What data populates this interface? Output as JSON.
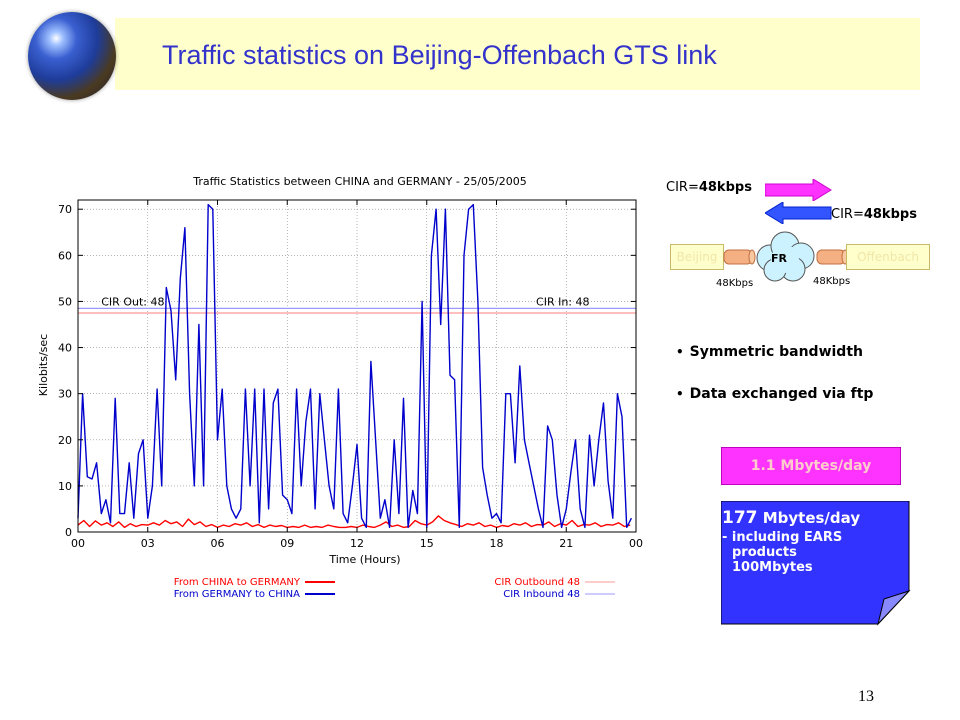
{
  "slide": {
    "title": "Traffic statistics on Beijing-Offenbach GTS link",
    "page_number": "13"
  },
  "chart_data": {
    "type": "line",
    "title": "Traffic Statistics between CHINA and GERMANY - 25/05/2005",
    "xlabel": "Time (Hours)",
    "ylabel": "Kilobits/sec",
    "xlim": [
      0,
      24
    ],
    "ylim": [
      0,
      72
    ],
    "xticks": [
      "00",
      "03",
      "06",
      "09",
      "12",
      "15",
      "18",
      "21",
      "00"
    ],
    "yticks": [
      0,
      10,
      20,
      30,
      40,
      50,
      60,
      70
    ],
    "grid": true,
    "legend_position": "bottom",
    "annotations": [
      {
        "text": "CIR Out: 48",
        "at_hour": 1,
        "at_value": 50
      },
      {
        "text": "CIR In: 48",
        "at_hour": 19.7,
        "at_value": 50
      }
    ],
    "series": [
      {
        "name": "From CHINA to GERMANY",
        "color": "#ff0000",
        "style": "solid",
        "x": [
          0,
          0.25,
          0.5,
          0.75,
          1,
          1.25,
          1.5,
          1.75,
          2,
          2.25,
          2.5,
          2.75,
          3,
          3.25,
          3.5,
          3.75,
          4,
          4.25,
          4.5,
          4.75,
          5,
          5.25,
          5.5,
          5.75,
          6,
          6.25,
          6.5,
          6.75,
          7,
          7.25,
          7.5,
          7.75,
          8,
          8.25,
          8.5,
          8.75,
          9,
          9.25,
          9.5,
          9.75,
          10,
          10.25,
          10.5,
          10.75,
          11,
          11.25,
          11.5,
          11.75,
          12,
          12.25,
          12.5,
          12.75,
          13,
          13.25,
          13.5,
          13.75,
          14,
          14.25,
          14.5,
          14.75,
          15,
          15.25,
          15.5,
          15.75,
          16,
          16.25,
          16.5,
          16.75,
          17,
          17.25,
          17.5,
          17.75,
          18,
          18.25,
          18.5,
          18.75,
          19,
          19.25,
          19.5,
          19.75,
          20,
          20.25,
          20.5,
          20.75,
          21,
          21.25,
          21.5,
          21.75,
          22,
          22.25,
          22.5,
          22.75,
          23,
          23.25,
          23.5,
          23.75
        ],
        "values": [
          1.5,
          2.5,
          1.2,
          2.4,
          1.5,
          2,
          1.2,
          2.2,
          1,
          1.8,
          1.2,
          1.6,
          1.5,
          2,
          1.5,
          2.5,
          1.8,
          2.2,
          1.2,
          2.8,
          1.6,
          2.2,
          1.2,
          1.6,
          1,
          1.5,
          1.2,
          1.8,
          1.5,
          2,
          1.2,
          1.6,
          1,
          1.5,
          1.2,
          1.4,
          1,
          1.2,
          1,
          1.5,
          1,
          1.2,
          1,
          1.5,
          1.2,
          1,
          1,
          1.2,
          1,
          1.5,
          1.2,
          1,
          1.5,
          2.2,
          1.2,
          1.5,
          1,
          1.2,
          2.5,
          1.8,
          1.5,
          2.2,
          3.5,
          2.5,
          2,
          1.6,
          1.2,
          1.8,
          1.5,
          2,
          1.2,
          1.5,
          1,
          1.4,
          1.2,
          1.8,
          1.5,
          2,
          1.2,
          1.6,
          1.5,
          2.2,
          1.2,
          1.8,
          1.5,
          2.5,
          1.2,
          1.6,
          1.5,
          2,
          1.2,
          1.6,
          1.5,
          2,
          1.2,
          1.5
        ]
      },
      {
        "name": "From GERMANY to CHINA",
        "color": "#0000cc",
        "style": "solid",
        "x": [
          0,
          0.2,
          0.4,
          0.6,
          0.8,
          1,
          1.2,
          1.4,
          1.6,
          1.8,
          2,
          2.2,
          2.4,
          2.6,
          2.8,
          3,
          3.2,
          3.4,
          3.6,
          3.8,
          4,
          4.2,
          4.4,
          4.6,
          4.8,
          5,
          5.2,
          5.4,
          5.6,
          5.8,
          6,
          6.2,
          6.4,
          6.6,
          6.8,
          7,
          7.2,
          7.4,
          7.6,
          7.8,
          8,
          8.2,
          8.4,
          8.6,
          8.8,
          9,
          9.2,
          9.4,
          9.6,
          9.8,
          10,
          10.2,
          10.4,
          10.6,
          10.8,
          11,
          11.2,
          11.4,
          11.6,
          11.8,
          12,
          12.2,
          12.4,
          12.6,
          12.8,
          13,
          13.2,
          13.4,
          13.6,
          13.8,
          14,
          14.2,
          14.4,
          14.6,
          14.8,
          15,
          15.2,
          15.4,
          15.6,
          15.8,
          16,
          16.2,
          16.4,
          16.6,
          16.8,
          17,
          17.2,
          17.4,
          17.6,
          17.8,
          18,
          18.2,
          18.4,
          18.6,
          18.8,
          19,
          19.2,
          19.4,
          19.6,
          19.8,
          20,
          20.2,
          20.4,
          20.6,
          20.8,
          21,
          21.2,
          21.4,
          21.6,
          21.8,
          22,
          22.2,
          22.4,
          22.6,
          22.8,
          23,
          23.2,
          23.4,
          23.6,
          23.8
        ],
        "values": [
          3,
          30,
          12,
          11.5,
          15,
          4,
          7,
          2,
          29,
          4,
          4,
          15,
          3,
          17,
          20,
          3,
          10,
          31,
          10,
          53,
          48,
          33,
          55,
          66,
          30,
          10,
          45,
          10,
          71,
          70,
          20,
          31,
          10,
          5,
          3,
          5,
          31,
          10,
          31,
          2,
          31,
          5,
          28,
          31,
          8,
          7,
          4,
          31,
          10,
          24,
          31,
          5,
          30,
          20,
          10,
          5,
          31,
          4,
          2,
          10,
          19,
          3,
          1,
          37,
          20,
          3,
          7,
          1,
          20,
          4,
          29,
          1,
          9,
          4,
          50,
          1,
          60,
          70,
          45,
          70,
          34,
          33,
          1,
          60,
          70,
          71,
          50,
          14,
          8,
          3,
          4,
          2,
          30,
          30,
          15,
          36,
          20,
          15,
          10,
          5,
          1,
          23,
          20,
          8,
          1,
          5,
          13,
          20,
          5,
          1,
          21,
          10,
          20,
          28,
          11,
          3,
          30,
          25,
          1,
          3
        ]
      },
      {
        "name": "CIR Outbound 48",
        "color": "#ff9999",
        "style": "solid",
        "constant": 47.5
      },
      {
        "name": "CIR Inbound 48",
        "color": "#9999ff",
        "style": "solid",
        "constant": 48.5
      }
    ]
  },
  "diagram": {
    "cir_out": {
      "label": "CIR=",
      "value": "48kbps",
      "color": "#ff33ff"
    },
    "cir_in": {
      "label": "CIR=",
      "value": "48kbps",
      "color": "#3355ff"
    },
    "left_node": "Beijing",
    "cloud_label": "FR",
    "right_node": "Offenbach",
    "left_speed": "48Kbps",
    "right_speed": "48Kbps"
  },
  "bullets": [
    "Symmetric bandwidth",
    "Data exchanged via ftp"
  ],
  "volumes": {
    "out_box": "1.1 Mbytes/day",
    "in_amount": "177",
    "in_unit": " Mbytes/day",
    "in_line2": "- including EARS",
    "in_line3": "products",
    "in_line4": "100Mbytes",
    "in_color": "#3333ff",
    "out_color": "#ff33ff"
  }
}
